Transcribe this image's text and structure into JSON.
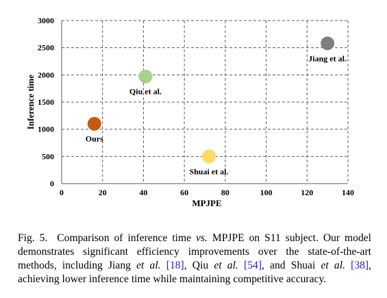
{
  "chart_data": {
    "type": "scatter",
    "title": "",
    "xlabel": "MPJPE",
    "ylabel": "Inference time",
    "xlim": [
      0,
      140
    ],
    "ylim": [
      0,
      3000
    ],
    "xticks": [
      "0",
      "20",
      "40",
      "60",
      "80",
      "100",
      "120",
      "140"
    ],
    "yticks": [
      "0",
      "500",
      "1000",
      "1500",
      "2000",
      "2500",
      "3000"
    ],
    "grid": true,
    "legend": "none",
    "points": [
      {
        "label": "Jiang et al.",
        "x": 130,
        "y": 2580,
        "color": "#7f7f7f",
        "label_pos": "below"
      },
      {
        "label": "Qiu et al.",
        "x": 41,
        "y": 1970,
        "color": "#a9d18e",
        "label_pos": "below"
      },
      {
        "label": "Ours",
        "x": 16,
        "y": 1100,
        "color": "#c55a11",
        "label_pos": "below"
      },
      {
        "label": "Shuai et al.",
        "x": 72,
        "y": 500,
        "color": "#ffd966",
        "label_pos": "below"
      }
    ]
  },
  "caption": {
    "label": "Fig. 5.",
    "part1": "Comparison of inference time ",
    "vs": "vs.",
    "part2": " MPJPE on S11 subject. Our model demonstrates significant efficiency improvements over the state-of-the-art methods, including Jiang ",
    "etal1": "et al.",
    "cite1": "[18]",
    "part3": ", Qiu ",
    "etal2": "et al.",
    "cite2": "[54]",
    "part4": ", and Shuai ",
    "etal3": "et al.",
    "cite3": "[38]",
    "part5": ", achieving lower inference time while maintaining competitive accuracy."
  }
}
